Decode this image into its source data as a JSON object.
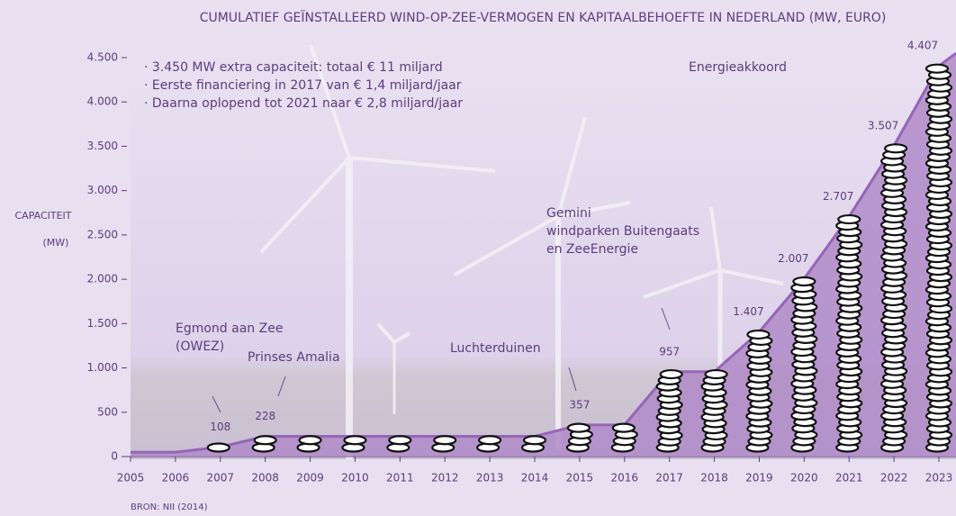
{
  "chart_data": {
    "type": "area",
    "title": "CUMULATIEF GEÏNSTALLEERD WIND-OP-ZEE-VERMOGEN EN KAPITAALBEHOEFTE IN NEDERLAND (MW, EURO)",
    "y_label": [
      "CAPACITEIT",
      "(MW)"
    ],
    "source": "BRON: NII (2014)",
    "bullets": [
      "· 3.450 MW extra capaciteit: totaal € 11 miljard",
      "· Eerste financiering in 2017 van € 1,4 miljard/jaar",
      "· Daarna oplopend tot 2021 naar € 2,8 miljard/jaar"
    ],
    "annotations": [
      {
        "lines": [
          "Egmond aan Zee",
          "(OWEZ)"
        ]
      },
      {
        "lines": [
          "Prinses Amalia"
        ]
      },
      {
        "lines": [
          "Luchterduinen"
        ]
      },
      {
        "lines": [
          "Gemini",
          "windparken Buitengaats",
          "en ZeeEnergie"
        ]
      },
      {
        "lines": [
          "Energieakkoord"
        ]
      }
    ],
    "categories": [
      "2005",
      "2006",
      "2007",
      "2008",
      "2009",
      "2010",
      "2011",
      "2012",
      "2013",
      "2014",
      "2015",
      "2016",
      "2017",
      "2018",
      "2019",
      "2020",
      "2021",
      "2022",
      "2023"
    ],
    "values": [
      50,
      50,
      108,
      228,
      228,
      228,
      228,
      228,
      228,
      228,
      357,
      357,
      957,
      957,
      1407,
      2007,
      2707,
      3507,
      4407
    ],
    "value_labels": [
      null,
      null,
      "108",
      "228",
      null,
      null,
      null,
      null,
      null,
      null,
      "357",
      null,
      "957",
      null,
      "1.407",
      "2.007",
      "2.707",
      "3.507",
      "4.407"
    ],
    "color": "#b08ac8",
    "ylim": [
      0,
      4500
    ],
    "yticks": [
      0,
      500,
      {
        "value": 1000,
        "label": "1.000"
      },
      {
        "value": 1500,
        "label": "1.500"
      },
      {
        "value": 2000,
        "label": "2.000"
      },
      {
        "value": 2500,
        "label": "2.500"
      },
      {
        "value": 3000,
        "label": "3.000"
      },
      {
        "value": 3500,
        "label": "3.500"
      },
      {
        "value": 4000,
        "label": "4.000"
      },
      {
        "value": 4500,
        "label": "4.500"
      }
    ]
  }
}
